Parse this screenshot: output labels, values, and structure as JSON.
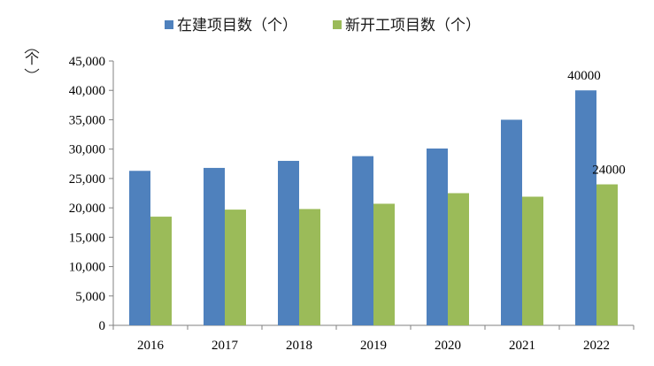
{
  "chart_data": {
    "type": "bar",
    "categories": [
      "2016",
      "2017",
      "2018",
      "2019",
      "2020",
      "2021",
      "2022"
    ],
    "series": [
      {
        "name": "在建项目数（个）",
        "color": "#4f81bd",
        "values": [
          26300,
          26800,
          28000,
          28800,
          30100,
          35000,
          40000
        ]
      },
      {
        "name": "新开工项目数（个）",
        "color": "#9bbb59",
        "values": [
          18500,
          19700,
          19800,
          20700,
          22500,
          21900,
          24000
        ]
      }
    ],
    "y_unit": "个",
    "ylim": [
      0,
      45000
    ],
    "y_ticks": [
      "0",
      "5,000",
      "10,000",
      "15,000",
      "20,000",
      "25,000",
      "30,000",
      "35,000",
      "40,000",
      "45,000"
    ],
    "data_labels": [
      {
        "series": 0,
        "index": 6,
        "text": "40000"
      },
      {
        "series": 1,
        "index": 6,
        "text": "24000"
      }
    ],
    "legend_position": "top",
    "grid": false
  }
}
